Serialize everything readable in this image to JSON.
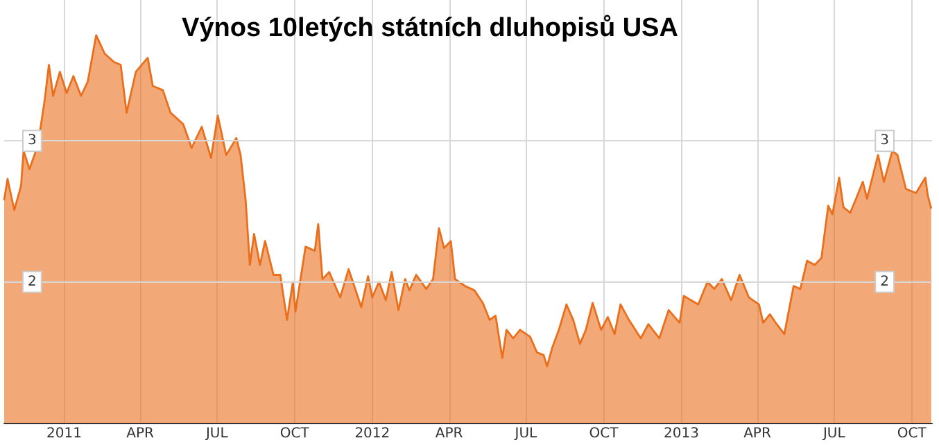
{
  "chart_data": {
    "type": "area",
    "title": "Výnos 10letých státních dluhopisů USA",
    "x": [
      "2010-10-22",
      "2010-10-26",
      "2010-11-03",
      "2010-11-11",
      "2010-11-14",
      "2010-11-21",
      "2010-12-01",
      "2010-12-09",
      "2010-12-14",
      "2010-12-19",
      "2010-12-27",
      "2011-01-04",
      "2011-01-12",
      "2011-01-21",
      "2011-01-29",
      "2011-02-08",
      "2011-02-18",
      "2011-03-01",
      "2011-03-09",
      "2011-03-16",
      "2011-03-27",
      "2011-04-10",
      "2011-04-16",
      "2011-04-28",
      "2011-05-07",
      "2011-05-22",
      "2011-06-01",
      "2011-06-13",
      "2011-06-24",
      "2011-07-02",
      "2011-07-12",
      "2011-07-24",
      "2011-07-29",
      "2011-08-04",
      "2011-08-09",
      "2011-08-14",
      "2011-08-21",
      "2011-08-27",
      "2011-09-06",
      "2011-09-14",
      "2011-09-22",
      "2011-09-29",
      "2011-10-02",
      "2011-10-14",
      "2011-10-25",
      "2011-10-29",
      "2011-11-03",
      "2011-11-11",
      "2011-11-24",
      "2011-12-04",
      "2011-12-19",
      "2011-12-27",
      "2012-01-01",
      "2012-01-09",
      "2012-01-17",
      "2012-01-24",
      "2012-02-01",
      "2012-02-09",
      "2012-02-14",
      "2012-02-22",
      "2012-03-05",
      "2012-03-13",
      "2012-03-20",
      "2012-03-26",
      "2012-04-03",
      "2012-04-08",
      "2012-04-20",
      "2012-05-01",
      "2012-05-11",
      "2012-05-19",
      "2012-05-26",
      "2012-06-03",
      "2012-06-08",
      "2012-06-16",
      "2012-06-24",
      "2012-07-06",
      "2012-07-14",
      "2012-07-22",
      "2012-07-26",
      "2012-08-01",
      "2012-08-09",
      "2012-08-18",
      "2012-08-26",
      "2012-09-03",
      "2012-09-10",
      "2012-09-18",
      "2012-09-28",
      "2012-10-06",
      "2012-10-14",
      "2012-10-21",
      "2012-10-31",
      "2012-11-14",
      "2012-11-23",
      "2012-12-06",
      "2012-12-17",
      "2012-12-30",
      "2013-01-04",
      "2013-01-21",
      "2013-02-01",
      "2013-02-09",
      "2013-02-18",
      "2013-03-01",
      "2013-03-11",
      "2013-03-22",
      "2013-04-03",
      "2013-04-08",
      "2013-04-16",
      "2013-04-24",
      "2013-05-03",
      "2013-05-14",
      "2013-05-22",
      "2013-05-30",
      "2013-06-08",
      "2013-06-16",
      "2013-06-24",
      "2013-06-29",
      "2013-07-07",
      "2013-07-12",
      "2013-07-20",
      "2013-07-27",
      "2013-08-04",
      "2013-08-09",
      "2013-08-22",
      "2013-08-29",
      "2013-09-08",
      "2013-09-14",
      "2013-09-24",
      "2013-10-06",
      "2013-10-17",
      "2013-10-20",
      "2013-10-24"
    ],
    "series": [
      {
        "color": "#ea6f1c",
        "values": [
          2.58,
          2.73,
          2.51,
          2.68,
          2.93,
          2.8,
          2.97,
          3.29,
          3.54,
          3.32,
          3.49,
          3.34,
          3.46,
          3.32,
          3.42,
          3.75,
          3.62,
          3.56,
          3.54,
          3.2,
          3.49,
          3.59,
          3.39,
          3.36,
          3.2,
          3.12,
          2.95,
          3.1,
          2.88,
          3.18,
          2.9,
          3.02,
          2.9,
          2.58,
          2.12,
          2.34,
          2.12,
          2.29,
          2.05,
          2.05,
          1.73,
          2.0,
          1.79,
          2.25,
          2.22,
          2.41,
          2.02,
          2.07,
          1.89,
          2.09,
          1.82,
          2.04,
          1.89,
          2.0,
          1.87,
          2.07,
          1.8,
          2.02,
          1.94,
          2.05,
          1.95,
          2.02,
          2.38,
          2.24,
          2.29,
          2.02,
          1.97,
          1.94,
          1.85,
          1.73,
          1.76,
          1.46,
          1.66,
          1.6,
          1.66,
          1.61,
          1.5,
          1.48,
          1.4,
          1.53,
          1.66,
          1.84,
          1.73,
          1.56,
          1.66,
          1.85,
          1.66,
          1.75,
          1.63,
          1.84,
          1.73,
          1.6,
          1.7,
          1.6,
          1.8,
          1.71,
          1.9,
          1.84,
          2.0,
          1.95,
          2.02,
          1.87,
          2.05,
          1.89,
          1.84,
          1.71,
          1.77,
          1.7,
          1.63,
          1.97,
          1.95,
          2.15,
          2.12,
          2.17,
          2.54,
          2.48,
          2.74,
          2.53,
          2.49,
          2.59,
          2.71,
          2.59,
          2.9,
          2.71,
          2.93,
          2.9,
          2.66,
          2.63,
          2.74,
          2.61,
          2.52
        ]
      }
    ],
    "xlim": [
      "2010-10-22",
      "2013-10-25"
    ],
    "xticks": [
      {
        "value": "2011-01-01",
        "label": "2011"
      },
      {
        "value": "2011-04-01",
        "label": "APR"
      },
      {
        "value": "2011-07-01",
        "label": "JUL"
      },
      {
        "value": "2011-10-01",
        "label": "OCT"
      },
      {
        "value": "2012-01-01",
        "label": "2012"
      },
      {
        "value": "2012-04-01",
        "label": "APR"
      },
      {
        "value": "2012-07-01",
        "label": "JUL"
      },
      {
        "value": "2012-10-01",
        "label": "OCT"
      },
      {
        "value": "2013-01-01",
        "label": "2013"
      },
      {
        "value": "2013-04-01",
        "label": "APR"
      },
      {
        "value": "2013-07-01",
        "label": "JUL"
      },
      {
        "value": "2013-10-01",
        "label": "OCT"
      }
    ],
    "ylim": [
      1,
      4
    ],
    "yticks": [
      2,
      3
    ],
    "y2lim": [
      1,
      4
    ],
    "y2ticks": [
      2,
      3
    ],
    "grid": true
  }
}
